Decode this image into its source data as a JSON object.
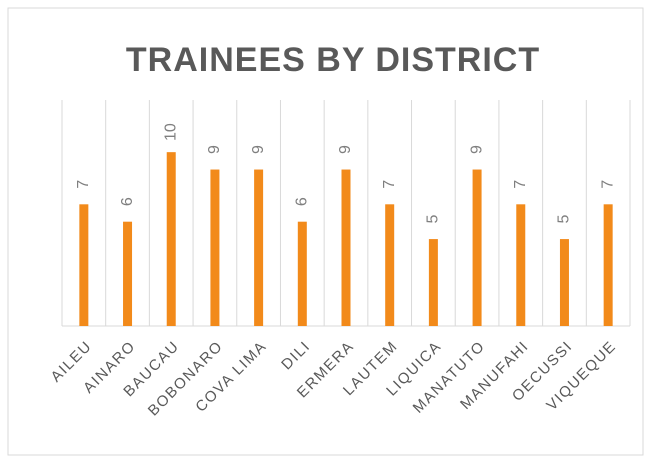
{
  "chart_data": {
    "type": "bar",
    "title": "TRAINEES BY DISTRICT",
    "categories": [
      "AILEU",
      "AINARO",
      "BAUCAU",
      "BOBONARO",
      "COVA LIMA",
      "DILI",
      "ERMERA",
      "LAUTEM",
      "LIQUICA",
      "MANATUTO",
      "MANUFAHI",
      "OECUSSI",
      "VIQUEQUE"
    ],
    "values": [
      7,
      6,
      10,
      9,
      9,
      6,
      9,
      7,
      5,
      9,
      7,
      5,
      7
    ],
    "color": "#f28a1a",
    "ylim": [
      0,
      13
    ],
    "grid": true
  }
}
